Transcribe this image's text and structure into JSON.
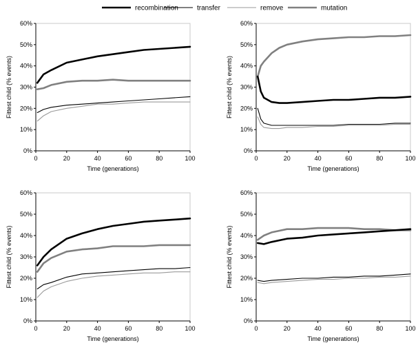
{
  "legend": {
    "placement": "top-center",
    "items": [
      {
        "key": "recombination",
        "label": "recombination",
        "color": "#000000",
        "style": "thick"
      },
      {
        "key": "transfer",
        "label": "transfer",
        "color": "#000000",
        "style": "thin"
      },
      {
        "key": "remove",
        "label": "remove",
        "color": "#999999",
        "style": "thin"
      },
      {
        "key": "mutation",
        "label": "mutation",
        "color": "#808080",
        "style": "thick"
      }
    ]
  },
  "chart_data": [
    {
      "type": "line",
      "panel": "top-left",
      "xlabel": "Time (generations)",
      "ylabel": "Fittest child (% events)",
      "xlim": [
        0,
        100
      ],
      "ylim": [
        0,
        60
      ],
      "xticks": [
        0,
        20,
        40,
        60,
        80,
        100
      ],
      "yticks": [
        "0%",
        "10%",
        "20%",
        "30%",
        "40%",
        "50%",
        "60%"
      ],
      "grid": false,
      "x": [
        1,
        5,
        10,
        20,
        30,
        40,
        50,
        60,
        70,
        80,
        90,
        100
      ],
      "series": [
        {
          "key": "recombination",
          "values": [
            32,
            36,
            38,
            41.5,
            43,
            44.5,
            45.5,
            46.5,
            47.5,
            48,
            48.5,
            49
          ]
        },
        {
          "key": "mutation",
          "values": [
            29,
            29.5,
            31,
            32.5,
            33,
            33,
            33.5,
            33,
            33,
            33,
            33,
            33
          ]
        },
        {
          "key": "transfer",
          "values": [
            18,
            19.5,
            20.5,
            21.5,
            22,
            22.5,
            23,
            23.5,
            24,
            24.5,
            25,
            25.5
          ]
        },
        {
          "key": "remove",
          "values": [
            14,
            16.5,
            18.5,
            20,
            21,
            22,
            22,
            22.5,
            23,
            23,
            23,
            23
          ]
        }
      ]
    },
    {
      "type": "line",
      "panel": "top-right",
      "xlabel": "Time (generations)",
      "ylabel": "Fittest child (% events)",
      "xlim": [
        0,
        100
      ],
      "ylim": [
        0,
        60
      ],
      "xticks": [
        0,
        20,
        40,
        60,
        80,
        100
      ],
      "yticks": [
        "0%",
        "10%",
        "20%",
        "30%",
        "40%",
        "50%",
        "60%"
      ],
      "grid": false,
      "x": [
        1,
        3,
        5,
        10,
        15,
        20,
        30,
        40,
        50,
        60,
        70,
        80,
        90,
        100
      ],
      "series": [
        {
          "key": "mutation",
          "values": [
            35,
            40,
            42,
            46,
            48.5,
            50,
            51.5,
            52.5,
            53,
            53.5,
            53.5,
            54,
            54,
            54.5
          ]
        },
        {
          "key": "recombination",
          "values": [
            35,
            28,
            25,
            23,
            22.5,
            22.5,
            23,
            23.5,
            24,
            24,
            24.5,
            25,
            25,
            25.5
          ]
        },
        {
          "key": "transfer",
          "values": [
            20,
            15,
            13,
            12,
            12,
            12,
            12,
            12,
            12,
            12.5,
            12.5,
            12.5,
            13,
            13
          ]
        },
        {
          "key": "remove",
          "values": [
            16,
            12.5,
            11,
            10.5,
            10.5,
            11,
            11,
            11.5,
            11.5,
            12,
            12,
            12,
            12.5,
            12.5
          ]
        }
      ]
    },
    {
      "type": "line",
      "panel": "bottom-left",
      "xlabel": "Time (generations)",
      "ylabel": "Fittest child (% events)",
      "xlim": [
        0,
        100
      ],
      "ylim": [
        0,
        60
      ],
      "xticks": [
        0,
        20,
        40,
        60,
        80,
        100
      ],
      "yticks": [
        "0%",
        "10%",
        "20%",
        "30%",
        "40%",
        "50%",
        "60%"
      ],
      "grid": false,
      "x": [
        1,
        5,
        10,
        20,
        30,
        40,
        50,
        60,
        70,
        80,
        90,
        100
      ],
      "series": [
        {
          "key": "recombination",
          "values": [
            26,
            30,
            33.5,
            38.5,
            41,
            43,
            44.5,
            45.5,
            46.5,
            47,
            47.5,
            48
          ]
        },
        {
          "key": "mutation",
          "values": [
            23,
            27,
            29.5,
            32.5,
            33.5,
            34,
            35,
            35,
            35,
            35.5,
            35.5,
            35.5
          ]
        },
        {
          "key": "transfer",
          "values": [
            15,
            17,
            18,
            20.5,
            22,
            22.5,
            23,
            23.5,
            24,
            24.5,
            24.5,
            25
          ]
        },
        {
          "key": "remove",
          "values": [
            11,
            14,
            16,
            18.5,
            20,
            21,
            21.5,
            22,
            22.5,
            22.5,
            23,
            23
          ]
        }
      ]
    },
    {
      "type": "line",
      "panel": "bottom-right",
      "xlabel": "Time (generations)",
      "ylabel": "Fittest child (% events)",
      "xlim": [
        0,
        100
      ],
      "ylim": [
        0,
        60
      ],
      "xticks": [
        0,
        20,
        40,
        60,
        80,
        100
      ],
      "yticks": [
        "0%",
        "10%",
        "20%",
        "30%",
        "40%",
        "50%",
        "60%"
      ],
      "grid": false,
      "x": [
        1,
        5,
        10,
        20,
        30,
        40,
        50,
        60,
        70,
        80,
        90,
        100
      ],
      "series": [
        {
          "key": "mutation",
          "values": [
            38,
            40,
            41.5,
            43,
            43,
            43.5,
            43.5,
            43.5,
            43,
            43,
            42.5,
            42.5
          ]
        },
        {
          "key": "recombination",
          "values": [
            36.5,
            36,
            37,
            38.5,
            39,
            40,
            40.5,
            41,
            41.5,
            42,
            42.5,
            43
          ]
        },
        {
          "key": "transfer",
          "values": [
            19,
            18.5,
            19,
            19.5,
            20,
            20,
            20.5,
            20.5,
            21,
            21,
            21.5,
            22
          ]
        },
        {
          "key": "remove",
          "values": [
            18,
            17.5,
            18,
            18.5,
            19,
            19.5,
            19.5,
            20,
            20,
            20.5,
            20.5,
            21
          ]
        }
      ]
    }
  ]
}
